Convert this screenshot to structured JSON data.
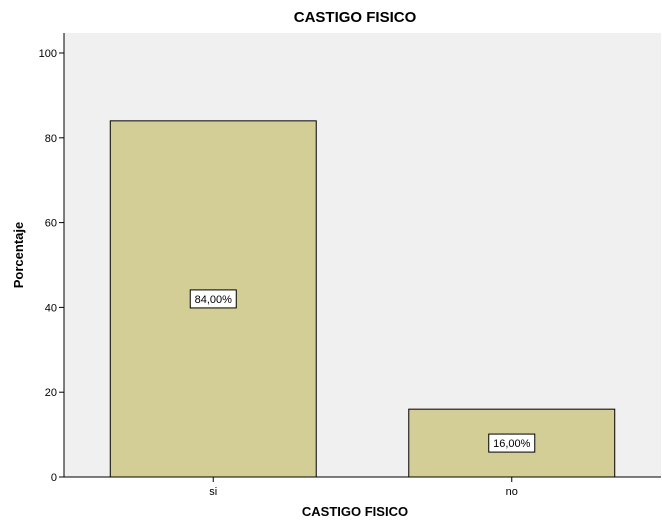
{
  "chart_data": {
    "type": "bar",
    "title": "CASTIGO FISICO",
    "xlabel": "CASTIGO FISICO",
    "ylabel": "Porcentaje",
    "categories": [
      "si",
      "no"
    ],
    "values": [
      84,
      16
    ],
    "data_labels": [
      "84,00%",
      "16,00%"
    ],
    "ylim": [
      0,
      100
    ],
    "yticks": [
      0,
      20,
      40,
      60,
      80,
      100
    ],
    "ytick_labels": [
      "0",
      "20",
      "40",
      "60",
      "80",
      "100"
    ],
    "grid": false,
    "colors": {
      "bar_fill": "#d3ce96",
      "bar_stroke": "#000000",
      "plot_background": "#f0f0f0",
      "axis": "#000000"
    }
  }
}
